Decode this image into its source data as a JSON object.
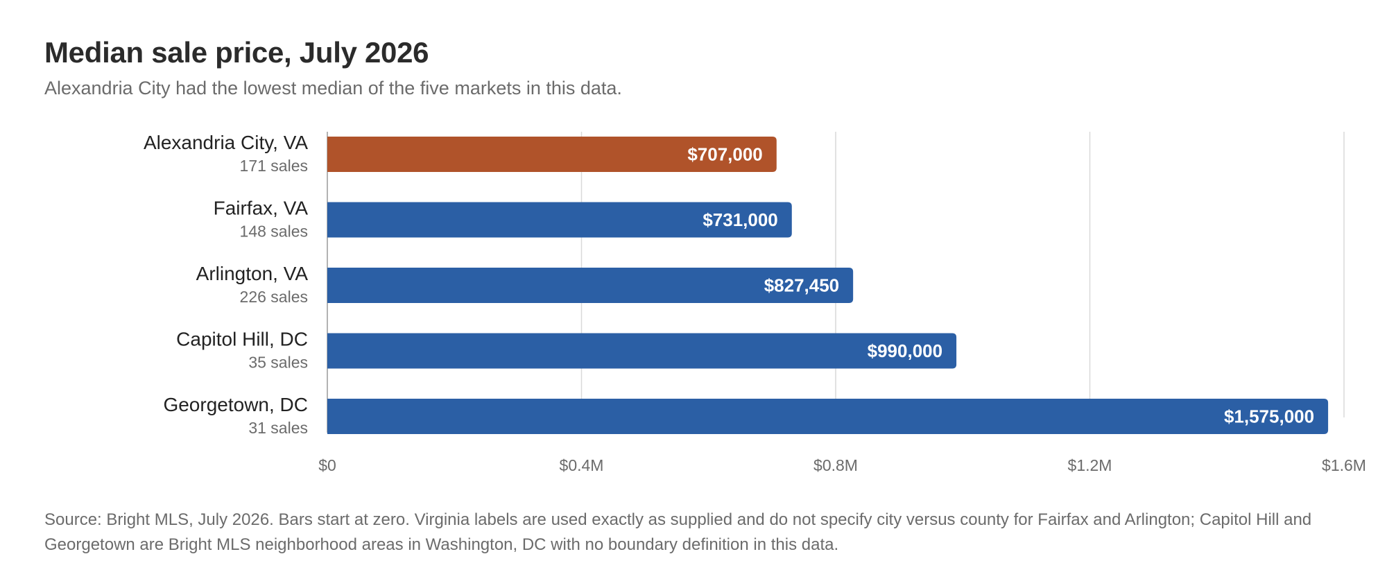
{
  "title": "Median sale price, July 2026",
  "subtitle": "Alexandria City had the lowest median of the five markets in this data.",
  "source": "Source: Bright MLS, July 2026. Bars start at zero. Virginia labels are used exactly as supplied and do not specify city versus county for Fairfax and Arlington; Capitol Hill and Georgetown are Bright MLS neighborhood areas in Washington, DC with no boundary definition in this data.",
  "colors": {
    "highlight": "#b0532a",
    "bar": "#2b5fa5",
    "grid": "#d9d9d9",
    "axis": "#9a9a9a",
    "label": "#222222",
    "muted": "#6b6b6b",
    "value_text": "#ffffff"
  },
  "chart_data": {
    "type": "bar",
    "orientation": "horizontal",
    "categories": [
      "Alexandria City, VA",
      "Fairfax, VA",
      "Arlington, VA",
      "Capitol Hill, DC",
      "Georgetown, DC"
    ],
    "sublabels": [
      "171 sales",
      "148 sales",
      "226 sales",
      "35 sales",
      "31 sales"
    ],
    "values": [
      707000,
      731000,
      827450,
      990000,
      1575000
    ],
    "value_labels": [
      "$707,000",
      "$731,000",
      "$827,450",
      "$990,000",
      "$1,575,000"
    ],
    "highlight_index": 0,
    "xlim": [
      0,
      1600000
    ],
    "xticks": [
      0,
      400000,
      800000,
      1200000,
      1600000
    ],
    "xtick_labels": [
      "$0",
      "$0.4M",
      "$0.8M",
      "$1.2M",
      "$1.6M"
    ],
    "grid": true
  }
}
